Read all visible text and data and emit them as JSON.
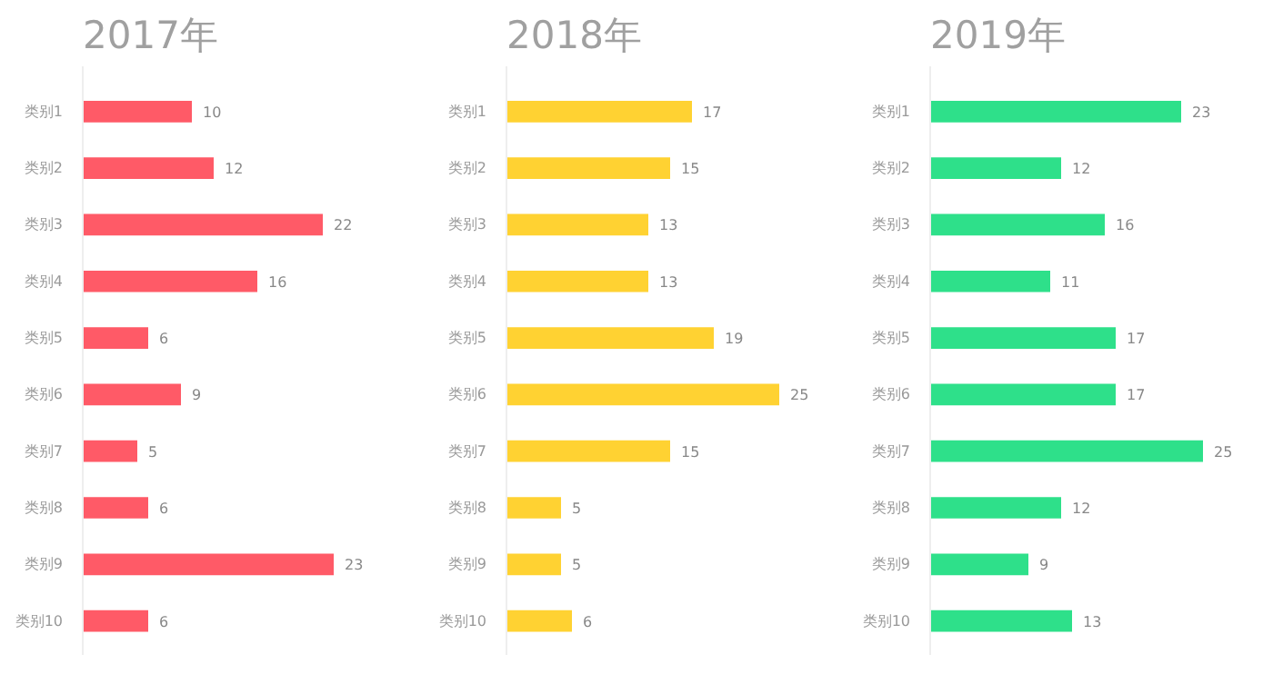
{
  "chart_data": [
    {
      "type": "bar",
      "orientation": "horizontal",
      "title": "2017年",
      "categories": [
        "类别1",
        "类别2",
        "类别3",
        "类别4",
        "类别5",
        "类别6",
        "类别7",
        "类别8",
        "类别9",
        "类别10"
      ],
      "values": [
        10,
        12,
        22,
        16,
        6,
        9,
        5,
        6,
        23,
        6
      ],
      "color": "#ff5a67",
      "data_labels": true,
      "grid": false,
      "tick_labels": "y"
    },
    {
      "type": "bar",
      "orientation": "horizontal",
      "title": "2018年",
      "categories": [
        "类别1",
        "类别2",
        "类别3",
        "类别4",
        "类别5",
        "类别6",
        "类别7",
        "类别8",
        "类别9",
        "类别10"
      ],
      "values": [
        17,
        15,
        13,
        13,
        19,
        25,
        15,
        5,
        5,
        6
      ],
      "color": "#ffd232",
      "data_labels": true,
      "grid": false,
      "tick_labels": "y"
    },
    {
      "type": "bar",
      "orientation": "horizontal",
      "title": "2019年",
      "categories": [
        "类别1",
        "类别2",
        "类别3",
        "类别4",
        "类别5",
        "类别6",
        "类别7",
        "类别8",
        "类别9",
        "类别10"
      ],
      "values": [
        23,
        12,
        16,
        11,
        17,
        17,
        25,
        12,
        9,
        13
      ],
      "color": "#2ee08a",
      "data_labels": true,
      "grid": false,
      "tick_labels": "y"
    }
  ]
}
